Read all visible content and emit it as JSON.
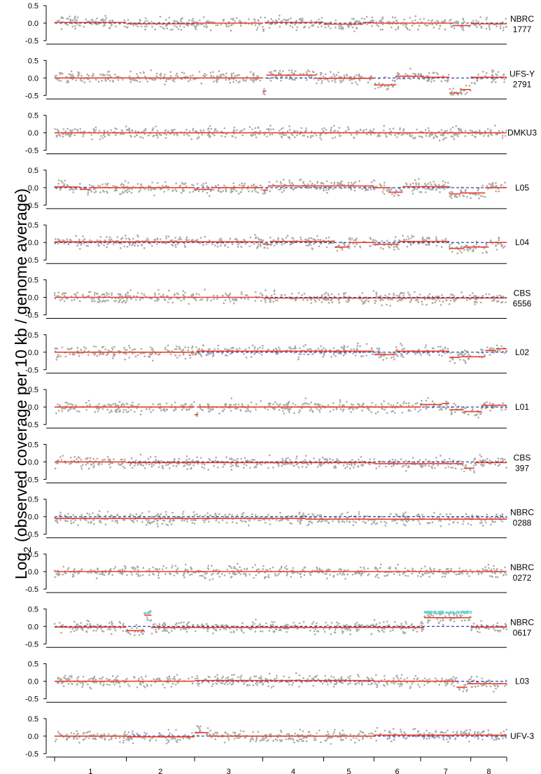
{
  "chart_data": {
    "type": "scatter",
    "ylabel_main": "Log",
    "ylabel_sub": "2",
    "ylabel_rest": " (observed coverage per 10 kb / genome average)",
    "ylim": [
      -0.5,
      0.5
    ],
    "yticks": [
      "0.5",
      "0.0",
      "-0.5"
    ],
    "chromosomes": [
      "1",
      "2",
      "3",
      "4",
      "5",
      "6",
      "7",
      "8"
    ],
    "chromosome_boundaries_kb": [
      0,
      2000,
      3900,
      5800,
      7500,
      8900,
      10200,
      11600,
      12600
    ],
    "colors": {
      "points": "#aaaaaa",
      "segment": "#e8402a",
      "baseline": "#1f2fa3",
      "amplified": "#6fcfd0"
    },
    "grid": false,
    "panels": [
      {
        "label_line1": "NBRC",
        "label_line2": "1777",
        "segments": [
          [
            0,
            2000,
            0.02
          ],
          [
            2000,
            3900,
            -0.02
          ],
          [
            3900,
            5800,
            0.0
          ],
          [
            5800,
            5850,
            -0.18
          ],
          [
            5850,
            7500,
            0.02
          ],
          [
            7500,
            8600,
            -0.03
          ],
          [
            8600,
            8900,
            0.02
          ],
          [
            8900,
            10300,
            0.0
          ],
          [
            10300,
            11100,
            0.0
          ],
          [
            11100,
            11600,
            -0.07
          ],
          [
            11600,
            12600,
            -0.02
          ]
        ]
      },
      {
        "label_line1": "UFS-Y",
        "label_line2": "2791",
        "segments": [
          [
            0,
            5800,
            0.0
          ],
          [
            5800,
            5900,
            -0.37
          ],
          [
            5900,
            7300,
            0.08
          ],
          [
            7300,
            8900,
            -0.01
          ],
          [
            8900,
            9500,
            -0.2
          ],
          [
            9500,
            10300,
            0.05
          ],
          [
            10300,
            11000,
            0.02
          ],
          [
            11000,
            11300,
            -0.43
          ],
          [
            11300,
            11600,
            -0.33
          ],
          [
            11600,
            12600,
            0.02
          ]
        ]
      },
      {
        "label_line1": "DMKU3",
        "label_line2": "",
        "segments": [
          [
            0,
            12600,
            0.0
          ]
        ]
      },
      {
        "label_line1": "L05",
        "label_line2": "",
        "segments": [
          [
            0,
            700,
            0.02
          ],
          [
            700,
            1000,
            -0.05
          ],
          [
            1000,
            3900,
            0.0
          ],
          [
            3900,
            4400,
            -0.05
          ],
          [
            4400,
            5800,
            0.0
          ],
          [
            5800,
            5950,
            -0.07
          ],
          [
            5950,
            8900,
            0.05
          ],
          [
            8900,
            9300,
            0.0
          ],
          [
            9300,
            9700,
            -0.13
          ],
          [
            9700,
            11000,
            0.03
          ],
          [
            11000,
            11300,
            -0.18
          ],
          [
            11300,
            12000,
            -0.15
          ],
          [
            12000,
            12600,
            0.0
          ]
        ]
      },
      {
        "label_line1": "L04",
        "label_line2": "",
        "segments": [
          [
            0,
            5800,
            0.02
          ],
          [
            5800,
            6000,
            -0.05
          ],
          [
            6000,
            7800,
            0.03
          ],
          [
            7800,
            8200,
            -0.13
          ],
          [
            8200,
            8900,
            0.0
          ],
          [
            8900,
            9600,
            -0.05
          ],
          [
            9600,
            11000,
            0.03
          ],
          [
            11000,
            11400,
            -0.17
          ],
          [
            11400,
            12100,
            -0.13
          ],
          [
            12100,
            12600,
            0.0
          ]
        ]
      },
      {
        "label_line1": "CBS",
        "label_line2": "6556",
        "segments": [
          [
            0,
            5800,
            0.0
          ],
          [
            5800,
            12600,
            -0.02
          ]
        ]
      },
      {
        "label_line1": "L02",
        "label_line2": "",
        "segments": [
          [
            0,
            3900,
            0.0
          ],
          [
            3900,
            3950,
            -0.07
          ],
          [
            3950,
            8900,
            0.03
          ],
          [
            8900,
            9500,
            -0.07
          ],
          [
            9500,
            11000,
            0.03
          ],
          [
            11000,
            11300,
            -0.15
          ],
          [
            11300,
            12000,
            -0.13
          ],
          [
            12000,
            12300,
            0.05
          ],
          [
            12300,
            12600,
            0.1
          ]
        ]
      },
      {
        "label_line1": "L01",
        "label_line2": "",
        "segments": [
          [
            0,
            3900,
            0.0
          ],
          [
            3900,
            4000,
            -0.22
          ],
          [
            4000,
            10200,
            0.0
          ],
          [
            10200,
            10800,
            0.07
          ],
          [
            10800,
            11000,
            0.1
          ],
          [
            11000,
            11400,
            -0.08
          ],
          [
            11400,
            11900,
            -0.13
          ],
          [
            11900,
            12600,
            0.05
          ]
        ]
      },
      {
        "label_line1": "CBS",
        "label_line2": "397",
        "segments": [
          [
            0,
            2000,
            0.0
          ],
          [
            2000,
            8900,
            -0.02
          ],
          [
            8900,
            11400,
            -0.05
          ],
          [
            11400,
            11700,
            -0.18
          ],
          [
            11700,
            12600,
            -0.02
          ]
        ]
      },
      {
        "label_line1": "NBRC",
        "label_line2": "0288",
        "segments": [
          [
            0,
            7000,
            -0.05
          ],
          [
            7000,
            12600,
            -0.07
          ]
        ]
      },
      {
        "label_line1": "NBRC",
        "label_line2": "0272",
        "segments": [
          [
            0,
            12600,
            0.0
          ]
        ]
      },
      {
        "label_line1": "NBRC",
        "label_line2": "0617",
        "segments": [
          [
            0,
            2000,
            -0.02
          ],
          [
            2000,
            2500,
            -0.12
          ],
          [
            2500,
            2700,
            0.32
          ],
          [
            2700,
            10300,
            -0.03
          ],
          [
            10300,
            11600,
            0.25
          ],
          [
            11600,
            12600,
            -0.02
          ]
        ],
        "amplified": [
          [
            2500,
            2700,
            0.4
          ],
          [
            10300,
            11600,
            0.4
          ]
        ]
      },
      {
        "label_line1": "L03",
        "label_line2": "",
        "segments": [
          [
            0,
            3900,
            0.0
          ],
          [
            3900,
            8900,
            0.02
          ],
          [
            8900,
            11200,
            0.0
          ],
          [
            11200,
            11500,
            -0.17
          ],
          [
            11500,
            12600,
            -0.07
          ]
        ]
      },
      {
        "label_line1": "UFV-3",
        "label_line2": "",
        "segments": [
          [
            0,
            2000,
            0.0
          ],
          [
            2000,
            3900,
            -0.02
          ],
          [
            3900,
            4300,
            0.1
          ],
          [
            4300,
            5800,
            0.0
          ],
          [
            5800,
            8900,
            0.0
          ],
          [
            8900,
            12600,
            0.03
          ]
        ]
      }
    ]
  }
}
